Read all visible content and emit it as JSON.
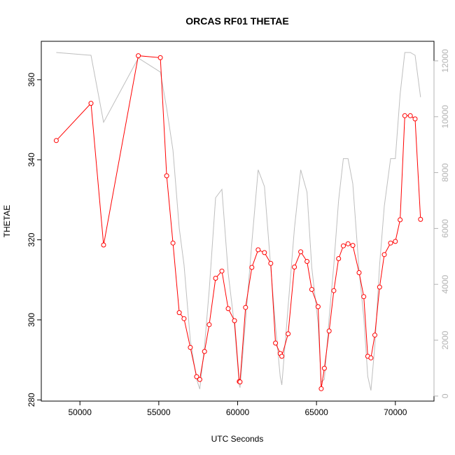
{
  "chart_data": {
    "type": "line",
    "title": "ORCAS RF01 THETAE",
    "xlabel": "UTC Seconds",
    "ylabel": "THETAE",
    "xlim": [
      47550,
      72450
    ],
    "ylim": [
      279.7,
      369.6
    ],
    "y2lim": [
      -180,
      12700
    ],
    "xticks": [
      50000,
      55000,
      60000,
      65000,
      70000
    ],
    "yticks": [
      280,
      300,
      320,
      340,
      360
    ],
    "y2ticks": [
      0,
      2000,
      4000,
      6000,
      8000,
      10000,
      12000
    ],
    "grid": false,
    "colors": {
      "primary": "#ff0000",
      "secondary": "#bebebe",
      "right_axis": "#b3b3b3"
    },
    "series": [
      {
        "axis": "left",
        "color": "#ff0000",
        "marker": "open-circle",
        "x": [
          48500,
          50700,
          51500,
          53700,
          55100,
          55500,
          55900,
          56300,
          56600,
          57000,
          57400,
          57600,
          57900,
          58200,
          58600,
          59000,
          59400,
          59800,
          60100,
          60150,
          60500,
          60900,
          61300,
          61700,
          62100,
          62400,
          62700,
          62800,
          63200,
          63600,
          64000,
          64400,
          64700,
          65100,
          65300,
          65500,
          65800,
          66100,
          66400,
          66700,
          67000,
          67300,
          67700,
          68000,
          68250,
          68450,
          68700,
          69000,
          69300,
          69700,
          70000,
          70300,
          70600,
          70950,
          71250,
          71600
        ],
        "values": [
          344.8,
          354.1,
          318.7,
          366.0,
          365.5,
          336.0,
          319.2,
          301.8,
          300.3,
          293.1,
          285.8,
          285.1,
          292.1,
          298.8,
          310.4,
          312.2,
          302.8,
          299.8,
          284.6,
          284.5,
          303.1,
          313.1,
          317.5,
          316.8,
          314.1,
          294.2,
          291.6,
          290.9,
          296.5,
          313.2,
          317.0,
          314.6,
          307.6,
          303.3,
          282.8,
          287.9,
          297.2,
          307.3,
          315.3,
          318.5,
          319.0,
          318.6,
          311.8,
          305.8,
          290.9,
          290.5,
          296.2,
          308.2,
          316.3,
          319.2,
          319.6,
          325.0,
          351.0,
          351.0,
          350.2,
          325.1
        ]
      },
      {
        "axis": "right",
        "color": "#bebebe",
        "marker": "none",
        "x": [
          48500,
          50700,
          51500,
          53700,
          55100,
          55500,
          55900,
          56300,
          56600,
          57000,
          57400,
          57600,
          57900,
          58200,
          58600,
          59000,
          59400,
          59800,
          60100,
          60150,
          60500,
          60900,
          61300,
          61700,
          62100,
          62400,
          62700,
          62800,
          63200,
          63600,
          64000,
          64400,
          64700,
          65100,
          65300,
          65500,
          65800,
          66100,
          66400,
          66700,
          67000,
          67300,
          67700,
          68000,
          68250,
          68450,
          68700,
          69000,
          69300,
          69700,
          70000,
          70300,
          70600,
          70950,
          71250,
          71600
        ],
        "values": [
          12300,
          12200,
          9800,
          12100,
          11600,
          10300,
          8800,
          6000,
          4700,
          2000,
          600,
          250,
          1800,
          3800,
          7100,
          7400,
          4400,
          2500,
          400,
          300,
          2700,
          5500,
          8100,
          7500,
          4600,
          2500,
          700,
          400,
          3200,
          6000,
          8100,
          7300,
          4600,
          2600,
          500,
          600,
          2800,
          4700,
          7000,
          8500,
          8500,
          7600,
          4500,
          2800,
          700,
          200,
          1800,
          4700,
          6800,
          8500,
          8500,
          10800,
          12300,
          12300,
          12200,
          10700
        ]
      }
    ]
  }
}
